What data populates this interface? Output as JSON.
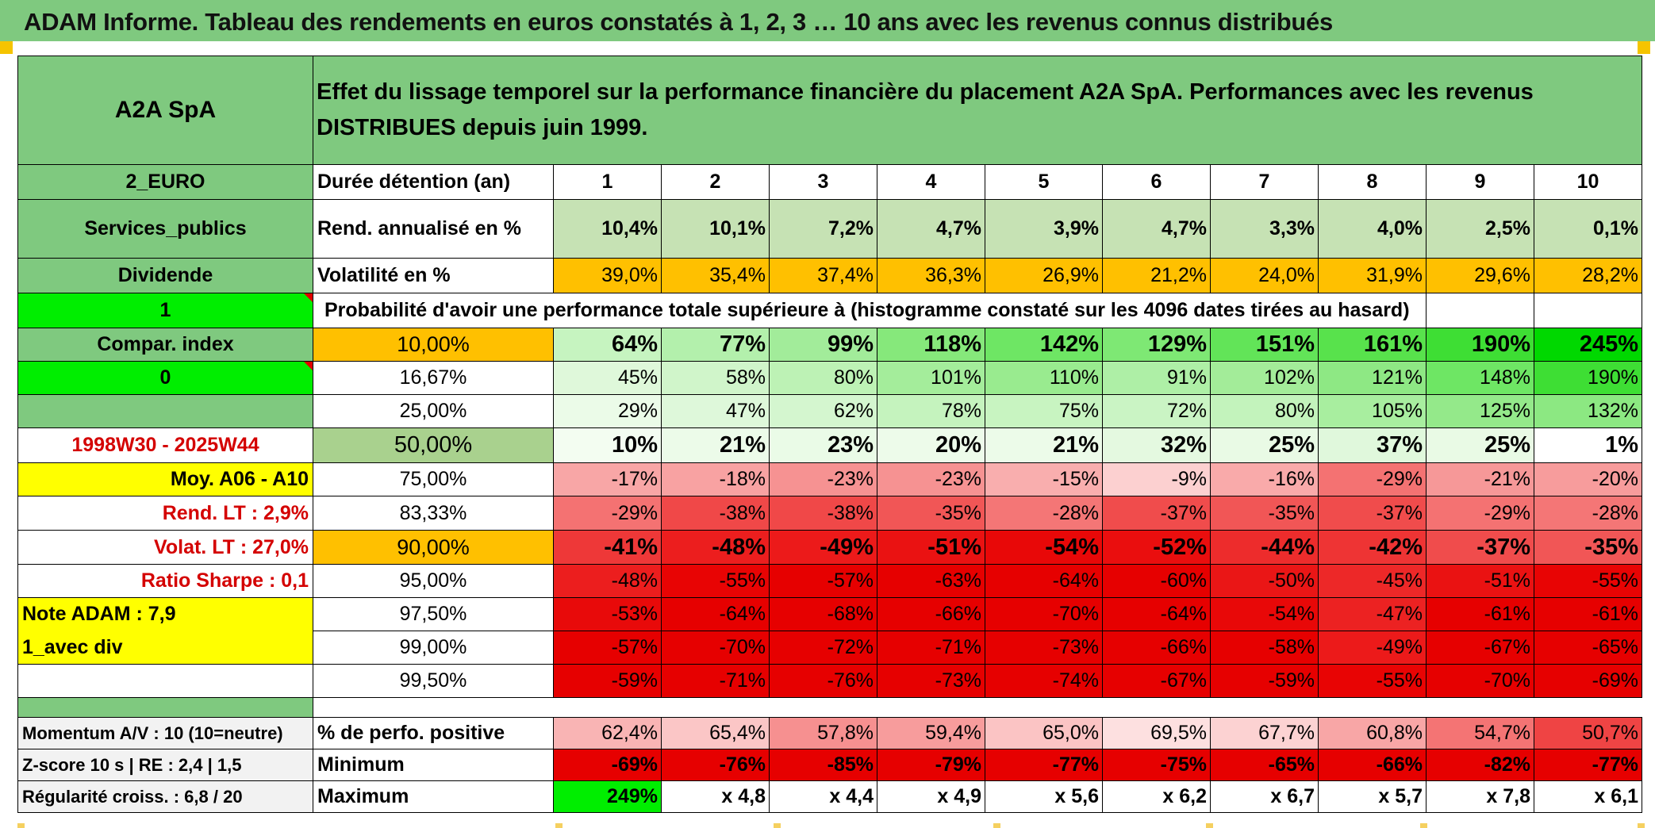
{
  "header": {
    "title": "ADAM Informe. Tableau des rendements en euros constatés à 1, 2, 3 … 10 ans avec les revenus connus distribués"
  },
  "left": {
    "name": "A2A SpA",
    "code": "2_EURO",
    "sector": "Services_publics",
    "income_type": "Dividende",
    "flag_value": "1",
    "compar_label": "Compar. index",
    "compar_value": "0",
    "period": "1998W30 - 2025W44",
    "moy": "Moy. A06 - A10",
    "rend_lt": "Rend. LT :   2,9%",
    "volat_lt": "Volat. LT :   27,0%",
    "sharpe": "Ratio Sharpe :   0,1",
    "note": "Note ADAM : 7,9",
    "mode": "1_avec div",
    "momentum": "Momentum A/V : 10 (10=neutre)",
    "zscore": "Z-score 10 s | RE : 2,4 | 1,5",
    "regularite": "Régularité croiss. : 6,8 / 20"
  },
  "main_title": "Effet du lissage temporel sur la performance financière du placement A2A SpA. Performances avec les revenus DISTRIBUES depuis juin 1999.",
  "labels": {
    "duree": "Durée détention (an)",
    "rend": "Rend. annualisé en %",
    "volat": "Volatilité en %",
    "proba": "Probabilité d'avoir une performance totale supérieure à (histogramme constaté sur les 4096 dates tirées au hasard)",
    "pct_pos": "% de perfo. positive",
    "minimum": "Minimum",
    "maximum": "Maximum"
  },
  "years": [
    "1",
    "2",
    "3",
    "4",
    "5",
    "6",
    "7",
    "8",
    "9",
    "10"
  ],
  "rend_annualise": [
    "10,4%",
    "10,1%",
    "7,2%",
    "4,7%",
    "3,9%",
    "4,7%",
    "3,3%",
    "4,0%",
    "2,5%",
    "0,1%"
  ],
  "volatilite": [
    "39,0%",
    "35,4%",
    "37,4%",
    "36,3%",
    "26,9%",
    "21,2%",
    "24,0%",
    "31,9%",
    "29,6%",
    "28,2%"
  ],
  "distribution": [
    {
      "p": "10,00%",
      "v": [
        "64%",
        "77%",
        "99%",
        "118%",
        "142%",
        "129%",
        "151%",
        "161%",
        "190%",
        "245%"
      ],
      "c": [
        "#c6f4c0",
        "#b3f0ac",
        "#a2ec9a",
        "#86e87b",
        "#6ee664",
        "#7ee874",
        "#62e458",
        "#58e24c",
        "#3ede34",
        "#00d800"
      ]
    },
    {
      "p": "16,67%",
      "v": [
        "45%",
        "58%",
        "80%",
        "101%",
        "110%",
        "91%",
        "102%",
        "121%",
        "148%",
        "190%"
      ],
      "c": [
        "#dff8da",
        "#d0f5ca",
        "#bdf2b5",
        "#a4ed9b",
        "#99eb8f",
        "#aeef a6",
        "#a3ec99",
        "#8ee884",
        "#6ee664",
        "#3ede34"
      ]
    },
    {
      "p": "25,00%",
      "v": [
        "29%",
        "47%",
        "62%",
        "78%",
        "75%",
        "72%",
        "80%",
        "105%",
        "125%",
        "132%"
      ],
      "c": [
        "#ebfbe8",
        "#def8da",
        "#d4f6cf",
        "#c5f3be",
        "#c8f4c1",
        "#caf4c4",
        "#c3f3bc",
        "#a8ee9f",
        "#94e98a",
        "#8ce882"
      ]
    },
    {
      "p": "50,00%",
      "v": [
        "10%",
        "21%",
        "23%",
        "20%",
        "21%",
        "32%",
        "25%",
        "37%",
        "25%",
        "1%"
      ],
      "c": [
        "#f3fdf1",
        "#ecfbe9",
        "#eafbe7",
        "#edfbea",
        "#ecfbe9",
        "#e4f9e0",
        "#e9fae5",
        "#e0f8dc",
        "#e9fae5",
        "#ffffff"
      ]
    },
    {
      "p": "75,00%",
      "v": [
        "-17%",
        "-18%",
        "-23%",
        "-23%",
        "-15%",
        "-9%",
        "-16%",
        "-29%",
        "-21%",
        "-20%"
      ],
      "c": [
        "#f8a6a6",
        "#f8a2a2",
        "#f69292",
        "#f69292",
        "#f9aeae",
        "#fcd0d0",
        "#f9aaaa",
        "#f47272",
        "#f69898",
        "#f79c9c"
      ]
    },
    {
      "p": "83,33%",
      "v": [
        "-29%",
        "-38%",
        "-38%",
        "-35%",
        "-28%",
        "-37%",
        "-35%",
        "-37%",
        "-29%",
        "-28%"
      ],
      "c": [
        "#f47272",
        "#f04848",
        "#f04848",
        "#f15656",
        "#f47676",
        "#f04c4c",
        "#f15656",
        "#f04c4c",
        "#f47272",
        "#f47676"
      ]
    },
    {
      "p": "90,00%",
      "v": [
        "-41%",
        "-48%",
        "-49%",
        "-51%",
        "-54%",
        "-52%",
        "-44%",
        "-42%",
        "-37%",
        "-35%"
      ],
      "c": [
        "#ee3838",
        "#ec1e1e",
        "#ec1a1a",
        "#ea1212",
        "#e80808",
        "#ea0e0e",
        "#ed2c2c",
        "#ee3434",
        "#f04c4c",
        "#f15656"
      ]
    },
    {
      "p": "95,00%",
      "v": [
        "-48%",
        "-55%",
        "-57%",
        "-63%",
        "-64%",
        "-60%",
        "-50%",
        "-45%",
        "-51%",
        "-55%"
      ],
      "c": [
        "#ec1e1e",
        "#e80404",
        "#e60000",
        "#e60000",
        "#e60000",
        "#e60000",
        "#ea1616",
        "#ed2828",
        "#ea1212",
        "#e80404"
      ]
    },
    {
      "p": "97,50%",
      "v": [
        "-53%",
        "-64%",
        "-68%",
        "-66%",
        "-70%",
        "-64%",
        "-54%",
        "-47%",
        "-61%",
        "-61%"
      ],
      "c": [
        "#e80a0a",
        "#e60000",
        "#e60000",
        "#e60000",
        "#e60000",
        "#e60000",
        "#e80808",
        "#ec2222",
        "#e60000",
        "#e60000"
      ]
    },
    {
      "p": "99,00%",
      "v": [
        "-57%",
        "-70%",
        "-72%",
        "-71%",
        "-73%",
        "-66%",
        "-58%",
        "-49%",
        "-67%",
        "-65%"
      ],
      "c": [
        "#e60000",
        "#e60000",
        "#e60000",
        "#e60000",
        "#e60000",
        "#e60000",
        "#e60000",
        "#ec1a1a",
        "#e60000",
        "#e60000"
      ]
    },
    {
      "p": "99,50%",
      "v": [
        "-59%",
        "-71%",
        "-76%",
        "-73%",
        "-74%",
        "-67%",
        "-59%",
        "-55%",
        "-70%",
        "-69%"
      ],
      "c": [
        "#e60000",
        "#e60000",
        "#e60000",
        "#e60000",
        "#e60000",
        "#e60000",
        "#e60000",
        "#e80404",
        "#e60000",
        "#e60000"
      ]
    }
  ],
  "pct_positive": [
    "62,4%",
    "65,4%",
    "57,8%",
    "59,4%",
    "65,0%",
    "69,5%",
    "67,7%",
    "60,8%",
    "54,7%",
    "50,7%"
  ],
  "pct_positive_colors": [
    "#f9b4b4",
    "#fbc6c6",
    "#f69090",
    "#f79c9c",
    "#fbc4c4",
    "#fde0e0",
    "#fcd2d2",
    "#f8a6a6",
    "#f47474",
    "#ef4444"
  ],
  "minimum": [
    "-69%",
    "-76%",
    "-85%",
    "-79%",
    "-77%",
    "-75%",
    "-65%",
    "-66%",
    "-82%",
    "-77%"
  ],
  "maximum": [
    "249%",
    "x 4,8",
    "x 4,4",
    "x 4,9",
    "x 5,6",
    "x 6,2",
    "x 6,7",
    "x 5,7",
    "x 7,8",
    "x 6,1"
  ],
  "colors": {
    "header_green": "#7fc97f",
    "light_green": "#c6e2b4",
    "orange": "#ffc000",
    "yellow": "#ffff00",
    "lime": "#00ee00",
    "red": "#e60000"
  }
}
